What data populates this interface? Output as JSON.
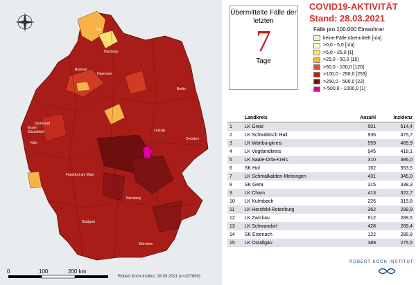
{
  "map": {
    "cities": [
      "Kiel",
      "Hamburg",
      "Bremen",
      "Hannover",
      "Berlin",
      "Dortmund",
      "Essen",
      "Düsseldorf",
      "Köln",
      "Leipzig",
      "Dresden",
      "Frankfurt am Main",
      "Nürnberg",
      "Stuttgart",
      "München"
    ],
    "scale_labels": [
      "0",
      "100",
      "200 km"
    ],
    "credit": "Robert Koch-Institut, 28.03.2021 (n=107890)",
    "compass_icon": "compass-rose-icon"
  },
  "panel": {
    "title": "COVID19-AKTIVITÄT",
    "stand": "Stand: 28.03.2021",
    "info_text": "Übermittelte Fälle der letzten",
    "days_number": "7",
    "days_label": "Tage",
    "subtitle": "Fälle pro 100.000 Einwohner"
  },
  "legend": [
    {
      "label": "keine Fälle übermittelt [n/a]",
      "color": "#e6f5d0"
    },
    {
      "label": ">0,0 - 5,0 [n/a]",
      "color": "#fffcc8"
    },
    {
      "label": ">5,0 - 25,0 [1]",
      "color": "#fbe170"
    },
    {
      "label": ">25,0 - 50,0 [15]",
      "color": "#f8b346"
    },
    {
      "label": ">50,0 - 100,0 [120]",
      "color": "#e2502c"
    },
    {
      "label": ">100,0 - 250,0 [253]",
      "color": "#b31f17"
    },
    {
      "label": ">250,0 - 500,0 [22]",
      "color": "#6e0f0f"
    },
    {
      "label": "> 500,0 - 1000,0 [1]",
      "color": "#e000a0"
    }
  ],
  "table": {
    "headers": [
      "",
      "Landkreis",
      "Anzahl",
      "Inzidenz"
    ],
    "rows": [
      [
        "1",
        "LK Greiz",
        "501",
        "514,4"
      ],
      [
        "2",
        "LK Schwäbisch Hall",
        "936",
        "475,7"
      ],
      [
        "3",
        "LK Wartburgkreis",
        "559",
        "469,9"
      ],
      [
        "4",
        "LK Vogtlandkreis",
        "945",
        "418,1"
      ],
      [
        "5",
        "LK Saale-Orla-Kreis",
        "310",
        "386,0"
      ],
      [
        "6",
        "SK Hof",
        "162",
        "353,5"
      ],
      [
        "7",
        "LK Schmalkalden-Meiningen",
        "431",
        "345,0"
      ],
      [
        "8",
        "SK Gera",
        "315",
        "338,3"
      ],
      [
        "9",
        "LK Cham",
        "413",
        "322,7"
      ],
      [
        "10",
        "LK Kulmbach",
        "226",
        "315,8"
      ],
      [
        "11",
        "LK Hersfeld-Rotenburg",
        "362",
        "299,9"
      ],
      [
        "12",
        "LK Zwickau",
        "912",
        "289,5"
      ],
      [
        "13",
        "LK Schwandorf",
        "428",
        "289,4"
      ],
      [
        "14",
        "SK Eisenach",
        "122",
        "288,8"
      ],
      [
        "15",
        "LK Ostallgäu",
        "389",
        "275,5"
      ]
    ]
  },
  "footer": {
    "institute": "ROBERT KOCH INSTITUT"
  }
}
